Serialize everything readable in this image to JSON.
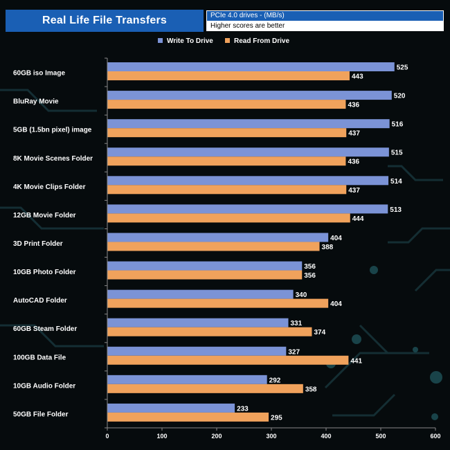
{
  "header": {
    "title": "Real Life File Transfers",
    "subtitle": "PCIe 4.0 drives - (MB/s)",
    "note": "Higher scores are better"
  },
  "colors": {
    "write": "#7b93d6",
    "read": "#f0a25c",
    "header_bg": "#1a5fb4",
    "text": "#ffffff",
    "background": "#060b0d"
  },
  "chart_data": {
    "type": "bar",
    "orientation": "horizontal",
    "categories": [
      "60GB iso Image",
      "BluRay Movie",
      "5GB (1.5bn pixel) image",
      "8K Movie Scenes Folder",
      "4K Movie Clips Folder",
      "12GB Movie Folder",
      "3D Print Folder",
      "10GB Photo Folder",
      "AutoCAD Folder",
      "60GB Steam Folder",
      "100GB Data File",
      "10GB Audio Folder",
      "50GB File Folder"
    ],
    "series": [
      {
        "name": "Write To  Drive",
        "color": "#7b93d6",
        "values": [
          525,
          520,
          516,
          515,
          514,
          513,
          404,
          356,
          340,
          331,
          327,
          292,
          233
        ]
      },
      {
        "name": "Read From  Drive",
        "color": "#f0a25c",
        "values": [
          443,
          436,
          437,
          436,
          437,
          444,
          388,
          356,
          404,
          374,
          441,
          358,
          295
        ]
      }
    ],
    "xlim": [
      0,
      600
    ],
    "xticks": [
      0,
      100,
      200,
      300,
      400,
      500,
      600
    ],
    "legend": "top-center",
    "grid": false
  }
}
